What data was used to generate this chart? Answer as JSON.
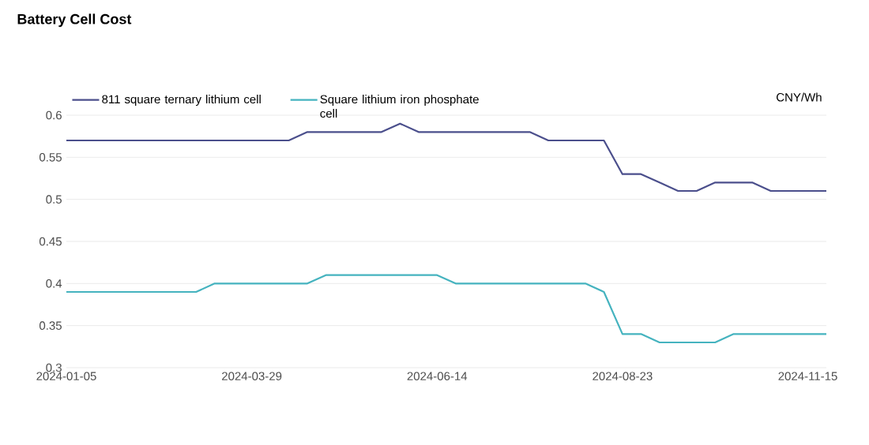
{
  "chart_data": {
    "type": "line",
    "title": "Battery Cell Cost",
    "ylabel": "CNY/Wh",
    "categories": [
      "2024-01-05",
      null,
      null,
      null,
      null,
      null,
      null,
      null,
      null,
      null,
      "2024-03-29",
      null,
      null,
      null,
      null,
      null,
      null,
      null,
      null,
      null,
      "2024-06-14",
      null,
      null,
      null,
      null,
      null,
      null,
      null,
      null,
      null,
      "2024-08-23",
      null,
      null,
      null,
      null,
      null,
      null,
      null,
      null,
      null,
      "2024-11-15",
      null
    ],
    "series": [
      {
        "name": "811 square ternary lithium cell",
        "color": "#4b4f8c",
        "values": [
          0.57,
          0.57,
          0.57,
          0.57,
          0.57,
          0.57,
          0.57,
          0.57,
          0.57,
          0.57,
          0.57,
          0.57,
          0.57,
          0.58,
          0.58,
          0.58,
          0.58,
          0.58,
          0.59,
          0.58,
          0.58,
          0.58,
          0.58,
          0.58,
          0.58,
          0.58,
          0.57,
          0.57,
          0.57,
          0.57,
          0.53,
          0.53,
          0.52,
          0.51,
          0.51,
          0.52,
          0.52,
          0.52,
          0.51,
          0.51,
          0.51,
          0.51
        ]
      },
      {
        "name": "Square lithium iron phosphate cell",
        "color": "#45b3bf",
        "values": [
          0.39,
          0.39,
          0.39,
          0.39,
          0.39,
          0.39,
          0.39,
          0.39,
          0.4,
          0.4,
          0.4,
          0.4,
          0.4,
          0.4,
          0.41,
          0.41,
          0.41,
          0.41,
          0.41,
          0.41,
          0.41,
          0.4,
          0.4,
          0.4,
          0.4,
          0.4,
          0.4,
          0.4,
          0.4,
          0.39,
          0.34,
          0.34,
          0.33,
          0.33,
          0.33,
          0.33,
          0.34,
          0.34,
          0.34,
          0.34,
          0.34,
          0.34
        ]
      }
    ],
    "ylim": [
      0.3,
      0.6
    ],
    "yticks": [
      0.3,
      0.35,
      0.4,
      0.45,
      0.5,
      0.55,
      0.6
    ],
    "grid": "y",
    "legend": "top left",
    "marker": "none",
    "line_style": "solid"
  }
}
